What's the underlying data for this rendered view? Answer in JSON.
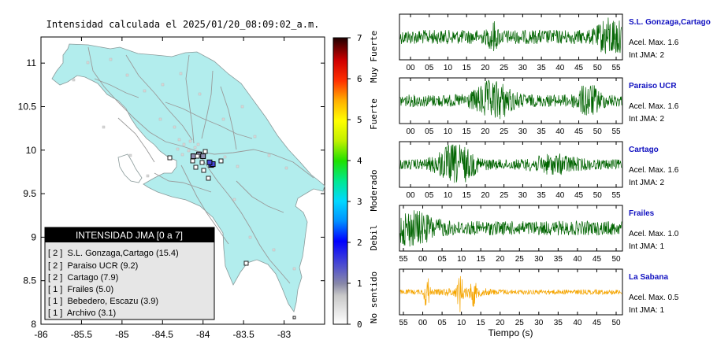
{
  "map": {
    "title": "Intensidad calculada el 2025/01/20_08:09:02_a.m.",
    "x_ticks": [
      "-86",
      "-85.5",
      "-85",
      "-84.5",
      "-84",
      "-83.5",
      "-83"
    ],
    "y_ticks": [
      "11",
      "10.5",
      "10",
      "9.5",
      "9",
      "8.5",
      "8"
    ],
    "xlim": [
      -86,
      -82.5
    ],
    "ylim": [
      8,
      11.3
    ],
    "colors": {
      "land": "#b2eded",
      "sea": "#ffffff",
      "roads": "#999999"
    }
  },
  "legend": {
    "title": "INTENSIDAD JMA [0 a 7]",
    "items": [
      {
        "label": "[ 2 ]  S.L. Gonzaga,Cartago (15.4)"
      },
      {
        "label": "[ 2 ]  Paraiso UCR (9.2)"
      },
      {
        "label": "[ 2 ]  Cartago (7.9)"
      },
      {
        "label": "[ 1 ]  Frailes (5.0)"
      },
      {
        "label": "[ 1 ]  Bebedero, Escazu (3.9)"
      },
      {
        "label": "[ 1 ]  Archivo (3.1)"
      }
    ]
  },
  "colorbar": {
    "ticks": [
      "7",
      "6",
      "5",
      "4",
      "3",
      "2",
      "1",
      "0"
    ],
    "categories": [
      "Muy Fuerte",
      "Fuerte",
      "Moderado",
      "Debil",
      "No sentido"
    ]
  },
  "stations_on_map": [
    {
      "lon": -83.9,
      "lat": 9.83,
      "intensity": 2
    },
    {
      "lon": -83.88,
      "lat": 9.84,
      "intensity": 2
    },
    {
      "lon": -83.92,
      "lat": 9.86,
      "intensity": 2
    },
    {
      "lon": -84.12,
      "lat": 9.93,
      "intensity": 1
    },
    {
      "lon": -84.05,
      "lat": 9.95,
      "intensity": 1
    },
    {
      "lon": -84.0,
      "lat": 9.93,
      "intensity": 1
    }
  ],
  "seismograms": {
    "xlabel": "Tiempo (s)",
    "traces": [
      {
        "name": "S.L. Gonzaga,Cartago",
        "acel": "Acel. Max. 1.6",
        "int": "Int JMA: 2",
        "color": "#006400",
        "ticks": [
          "00",
          "05",
          "10",
          "15",
          "20",
          "25",
          "30",
          "35",
          "40",
          "45",
          "50",
          "55"
        ]
      },
      {
        "name": "Paraiso UCR",
        "acel": "Acel. Max. 1.6",
        "int": "Int JMA: 2",
        "color": "#006400",
        "ticks": [
          "00",
          "05",
          "10",
          "15",
          "20",
          "25",
          "30",
          "35",
          "40",
          "45",
          "50",
          "55"
        ]
      },
      {
        "name": "Cartago",
        "acel": "Acel. Max. 1.6",
        "int": "Int JMA: 2",
        "color": "#006400",
        "ticks": [
          "00",
          "05",
          "10",
          "15",
          "20",
          "25",
          "30",
          "35",
          "40",
          "45",
          "50",
          "55"
        ]
      },
      {
        "name": "Frailes",
        "acel": "Acel. Max. 1.0",
        "int": "Int JMA: 1",
        "color": "#006400",
        "ticks": [
          "55",
          "00",
          "05",
          "10",
          "15",
          "20",
          "25",
          "30",
          "35",
          "40",
          "45",
          "50"
        ]
      },
      {
        "name": "La Sabana",
        "acel": "Acel. Max. 0.5",
        "int": "Int JMA: 1",
        "color": "#f5a500",
        "ticks": [
          "55",
          "00",
          "05",
          "10",
          "15",
          "20",
          "25",
          "30",
          "35",
          "40",
          "45",
          "50"
        ]
      }
    ]
  }
}
